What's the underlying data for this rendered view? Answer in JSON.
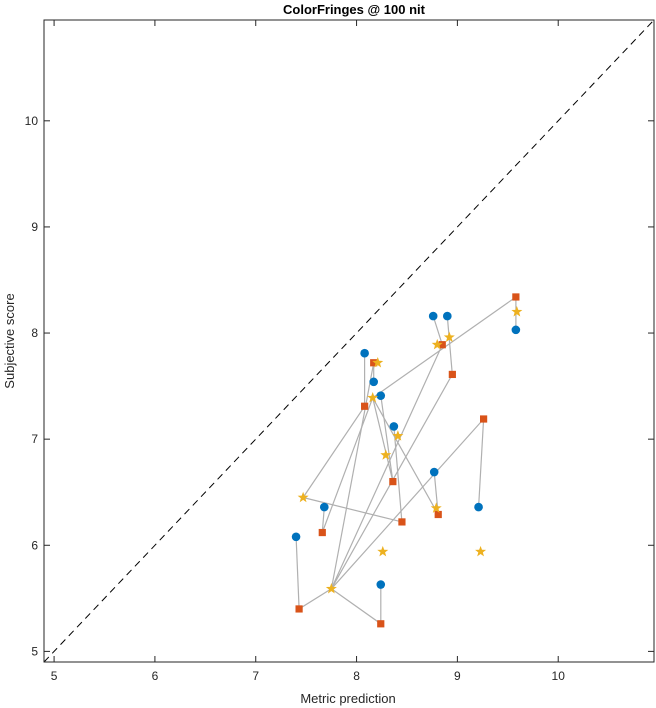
{
  "chart_data": {
    "type": "scatter",
    "title": "ColorFringes @ 100 nit",
    "xlabel": "Metric prediction",
    "ylabel": "Subjective score",
    "xlim": [
      4.9,
      10.95
    ],
    "ylim": [
      4.9,
      10.95
    ],
    "xticks": [
      5,
      6,
      7,
      8,
      9,
      10
    ],
    "yticks": [
      5,
      6,
      7,
      8,
      9,
      10
    ],
    "reference_line": {
      "style": "dashed",
      "color": "#000000",
      "x": [
        4.9,
        10.95
      ],
      "y": [
        4.9,
        10.95
      ]
    },
    "connector_color": "#b0b0b0",
    "series": [
      {
        "marker": "circle",
        "color": "#0072BD",
        "points": [
          {
            "x": 7.4,
            "y": 6.08
          },
          {
            "x": 7.68,
            "y": 6.36
          },
          {
            "x": 8.08,
            "y": 7.81
          },
          {
            "x": 8.17,
            "y": 7.54
          },
          {
            "x": 8.24,
            "y": 7.41
          },
          {
            "x": 8.37,
            "y": 7.12
          },
          {
            "x": 8.24,
            "y": 5.63
          },
          {
            "x": 8.76,
            "y": 8.16
          },
          {
            "x": 8.9,
            "y": 8.16
          },
          {
            "x": 8.77,
            "y": 6.69
          },
          {
            "x": 9.21,
            "y": 6.36
          },
          {
            "x": 9.58,
            "y": 8.03
          }
        ]
      },
      {
        "marker": "square",
        "color": "#D95319",
        "points": [
          {
            "x": 7.43,
            "y": 5.4
          },
          {
            "x": 7.66,
            "y": 6.12
          },
          {
            "x": 8.08,
            "y": 7.31
          },
          {
            "x": 8.17,
            "y": 7.72
          },
          {
            "x": 8.36,
            "y": 6.6
          },
          {
            "x": 8.45,
            "y": 6.22
          },
          {
            "x": 8.24,
            "y": 5.26
          },
          {
            "x": 8.85,
            "y": 7.89
          },
          {
            "x": 8.95,
            "y": 7.61
          },
          {
            "x": 8.81,
            "y": 6.29
          },
          {
            "x": 9.26,
            "y": 7.19
          },
          {
            "x": 9.58,
            "y": 8.34
          }
        ]
      },
      {
        "marker": "star",
        "color": "#EDB120",
        "points": [
          {
            "x": 7.47,
            "y": 6.45
          },
          {
            "x": 7.75,
            "y": 5.59
          },
          {
            "x": 8.16,
            "y": 7.39
          },
          {
            "x": 8.21,
            "y": 7.72
          },
          {
            "x": 8.29,
            "y": 6.85
          },
          {
            "x": 8.41,
            "y": 7.03
          },
          {
            "x": 8.26,
            "y": 5.94
          },
          {
            "x": 8.8,
            "y": 7.89
          },
          {
            "x": 8.92,
            "y": 7.96
          },
          {
            "x": 8.79,
            "y": 6.35
          },
          {
            "x": 9.23,
            "y": 5.94
          },
          {
            "x": 9.59,
            "y": 8.2
          }
        ]
      }
    ],
    "connections": [
      [
        0,
        0,
        1
      ],
      [
        1,
        1,
        2
      ],
      [
        2,
        2,
        0
      ],
      [
        3,
        3,
        1
      ],
      [
        4,
        4,
        2
      ],
      [
        5,
        5,
        0
      ],
      [
        6,
        6,
        1
      ],
      [
        7,
        7,
        1
      ],
      [
        8,
        8,
        1
      ],
      [
        9,
        9,
        2
      ],
      [
        10,
        10,
        1
      ],
      [
        11,
        11,
        2
      ]
    ]
  }
}
